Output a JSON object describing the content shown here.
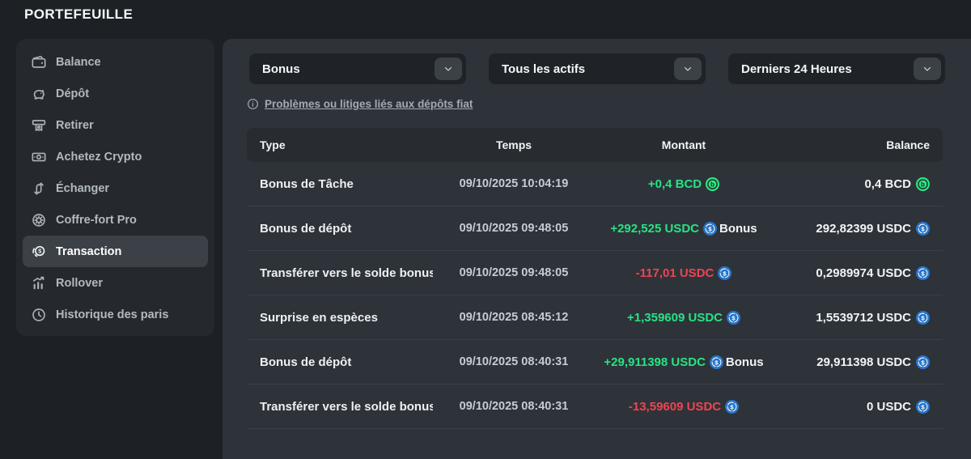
{
  "page": {
    "title": "PORTEFEUILLE"
  },
  "sidebar": {
    "items": [
      {
        "name": "balance",
        "label": "Balance",
        "icon": "wallet-icon",
        "active": false
      },
      {
        "name": "depot",
        "label": "Dépôt",
        "icon": "piggy-bank-icon",
        "active": false
      },
      {
        "name": "retirer",
        "label": "Retirer",
        "icon": "withdraw-icon",
        "active": false
      },
      {
        "name": "achetez-crypto",
        "label": "Achetez Crypto",
        "icon": "banknote-icon",
        "active": false
      },
      {
        "name": "echanger",
        "label": "Échanger",
        "icon": "swap-icon",
        "active": false
      },
      {
        "name": "coffre-fort-pro",
        "label": "Coffre-fort Pro",
        "icon": "vault-icon",
        "active": false
      },
      {
        "name": "transaction",
        "label": "Transaction",
        "icon": "coin-icon",
        "active": true
      },
      {
        "name": "rollover",
        "label": "Rollover",
        "icon": "bar-chart-icon",
        "active": false
      },
      {
        "name": "historique-des-paris",
        "label": "Historique des paris",
        "icon": "clock-icon",
        "active": false
      }
    ]
  },
  "filters": [
    {
      "name": "transaction-type-select",
      "value": "Bonus"
    },
    {
      "name": "asset-select",
      "value": "Tous les actifs"
    },
    {
      "name": "time-range-select",
      "value": "Derniers 24 Heures"
    }
  ],
  "notice": {
    "label": "Problèmes ou litiges liés aux dépôts fiat"
  },
  "table": {
    "headers": [
      "Type",
      "Temps",
      "Montant",
      "Balance"
    ],
    "rows": [
      {
        "type": "Bonus de Tâche",
        "time": "09/10/2025 10:04:19",
        "amount": "+0,4 BCD",
        "direction": "pos",
        "amount_coin": "BCD",
        "amount_tag": "",
        "balance": "0,4 BCD",
        "balance_coin": "BCD"
      },
      {
        "type": "Bonus de dépôt",
        "time": "09/10/2025 09:48:05",
        "amount": "+292,525 USDC",
        "direction": "pos",
        "amount_coin": "USDC",
        "amount_tag": "Bonus",
        "balance": "292,82399 USDC",
        "balance_coin": "USDC"
      },
      {
        "type": "Transférer vers le solde bonus",
        "time": "09/10/2025 09:48:05",
        "amount": "-117,01 USDC",
        "direction": "neg",
        "amount_coin": "USDC",
        "amount_tag": "",
        "balance": "0,2989974 USDC",
        "balance_coin": "USDC"
      },
      {
        "type": "Surprise en espèces",
        "time": "09/10/2025 08:45:12",
        "amount": "+1,359609 USDC",
        "direction": "pos",
        "amount_coin": "USDC",
        "amount_tag": "",
        "balance": "1,5539712 USDC",
        "balance_coin": "USDC"
      },
      {
        "type": "Bonus de dépôt",
        "time": "09/10/2025 08:40:31",
        "amount": "+29,911398 USDC",
        "direction": "pos",
        "amount_coin": "USDC",
        "amount_tag": "Bonus",
        "balance": "29,911398 USDC",
        "balance_coin": "USDC"
      },
      {
        "type": "Transférer vers le solde bonus",
        "time": "09/10/2025 08:40:31",
        "amount": "-13,59609 USDC",
        "direction": "neg",
        "amount_coin": "USDC",
        "amount_tag": "",
        "balance": "0 USDC",
        "balance_coin": "USDC"
      }
    ]
  },
  "colors": {
    "positive": "#27e384",
    "negative": "#f04451",
    "usdc_blue": "#2775ca",
    "bcd_green": "#2ae981"
  }
}
